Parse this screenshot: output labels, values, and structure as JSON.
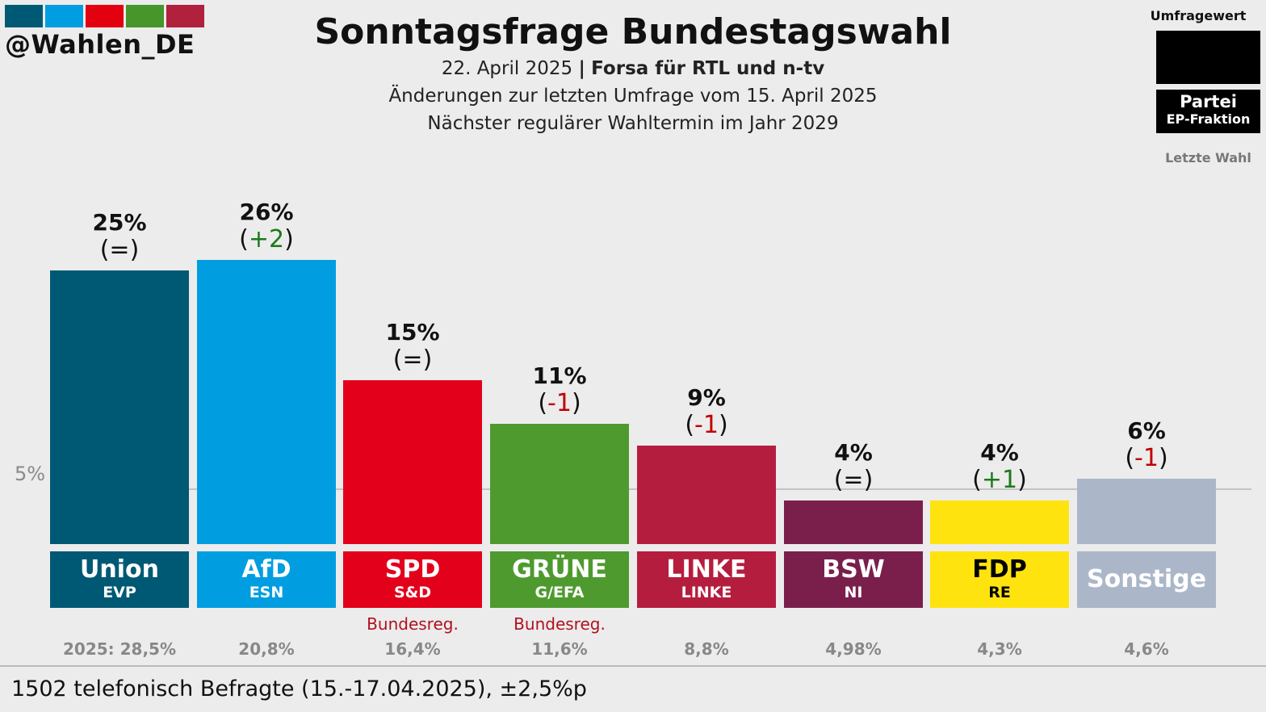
{
  "brand": {
    "handle": "@Wahlen_DE",
    "strip_colors": [
      "#005974",
      "#009ee0",
      "#e3000f",
      "#46962b",
      "#b1203c"
    ]
  },
  "header": {
    "title": "Sonntagsfrage Bundestagswahl",
    "date": "22. April 2025",
    "separator": "|",
    "institute": "Forsa für RTL und n-tv",
    "changes_note": "Änderungen zur letzten Umfrage vom 15. April 2025",
    "next_election": "Nächster regulärer Wahltermin im Jahr 2029"
  },
  "legend": {
    "value_label": "Umfragewert",
    "party_label": "Partei",
    "group_label": "EP-Fraktion",
    "last_label": "Letzte Wahl"
  },
  "footer": {
    "note": "1502 telefonisch Befragte (15.-17.04.2025), ±2,5%p"
  },
  "chart_data": {
    "type": "bar",
    "reference_line": {
      "value": 5,
      "label": "5%"
    },
    "categories": [
      "Union",
      "AfD",
      "SPD",
      "GRÜNE",
      "LINKE",
      "BSW",
      "FDP",
      "Sonstige"
    ],
    "values": [
      25,
      26,
      15,
      11,
      9,
      4,
      4,
      6
    ],
    "bars": [
      {
        "party": "Union",
        "group": "EVP",
        "value": 25,
        "value_label": "25%",
        "change": "=",
        "change_dir": "neutral",
        "color": "#005974",
        "gov": "",
        "last": "2025: 28,5%"
      },
      {
        "party": "AfD",
        "group": "ESN",
        "value": 26,
        "value_label": "26%",
        "change": "+2",
        "change_dir": "up",
        "color": "#009ee0",
        "gov": "",
        "last": "20,8%"
      },
      {
        "party": "SPD",
        "group": "S&D",
        "value": 15,
        "value_label": "15%",
        "change": "=",
        "change_dir": "neutral",
        "color": "#e3001b",
        "gov": "Bundesreg.",
        "last": "16,4%"
      },
      {
        "party": "GRÜNE",
        "group": "G/EFA",
        "value": 11,
        "value_label": "11%",
        "change": "-1",
        "change_dir": "down",
        "color": "#4e9a2e",
        "gov": "Bundesreg.",
        "last": "11,6%"
      },
      {
        "party": "LINKE",
        "group": "LINKE",
        "value": 9,
        "value_label": "9%",
        "change": "-1",
        "change_dir": "down",
        "color": "#b51d3e",
        "gov": "",
        "last": "8,8%"
      },
      {
        "party": "BSW",
        "group": "NI",
        "value": 4,
        "value_label": "4%",
        "change": "=",
        "change_dir": "neutral",
        "color": "#7a1f4b",
        "gov": "",
        "last": "4,98%"
      },
      {
        "party": "FDP",
        "group": "RE",
        "value": 4,
        "value_label": "4%",
        "change": "+1",
        "change_dir": "up",
        "color": "#ffe30f",
        "text_color": "#000000",
        "gov": "",
        "last": "4,3%"
      },
      {
        "party": "Sonstige",
        "group": "",
        "value": 6,
        "value_label": "6%",
        "change": "-1",
        "change_dir": "down",
        "color": "#abb7c9",
        "gov": "",
        "last": "4,6%"
      }
    ],
    "change_colors": {
      "up": "#1a7a1a",
      "down": "#c00000",
      "neutral": "#111111"
    }
  }
}
